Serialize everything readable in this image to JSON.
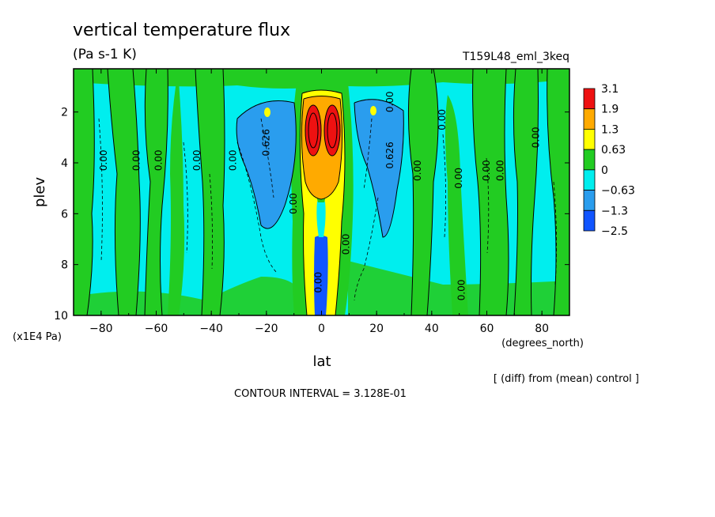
{
  "chart_data": {
    "type": "heatmap",
    "title": "vertical temperature flux",
    "units": "(Pa s-1 K)",
    "experiment": "T159L48_eml_3keq",
    "xlabel": "lat",
    "x_units": "(degrees_north)",
    "ylabel": "plev",
    "y_units": "(x1E4 Pa)",
    "xlim": [
      -90,
      90
    ],
    "ylim": [
      10,
      0.3
    ],
    "x_ticks": [
      -80,
      -60,
      -40,
      -20,
      0,
      20,
      40,
      60,
      80
    ],
    "y_ticks": [
      2,
      4,
      6,
      8,
      10
    ],
    "legend": {
      "placement": "right",
      "labels": [
        "3.1",
        "1.9",
        "1.3",
        "0.63",
        "0",
        "−0.63",
        "−1.3",
        "−2.5"
      ],
      "colors": [
        "#ee1111",
        "#ffaa00",
        "#ffff00",
        "#22cc22",
        "#00eeee",
        "#2a9dee",
        "#1155ff"
      ]
    },
    "contour_labels": [
      {
        "text": "0.00",
        "lat": -78,
        "plev": 3.9
      },
      {
        "text": "0.00",
        "lat": -66,
        "plev": 3.9
      },
      {
        "text": "0.00",
        "lat": -58,
        "plev": 3.9
      },
      {
        "text": "0.00",
        "lat": -44,
        "plev": 3.9
      },
      {
        "text": "0.00",
        "lat": -31,
        "plev": 3.9
      },
      {
        "text": "0.626",
        "lat": -19,
        "plev": 3.2
      },
      {
        "text": "0.00",
        "lat": -9,
        "plev": 5.6
      },
      {
        "text": "0.00",
        "lat": 0,
        "plev": 8.7
      },
      {
        "text": "0.00",
        "lat": 10,
        "plev": 7.2
      },
      {
        "text": "0.626",
        "lat": 26,
        "plev": 3.7
      },
      {
        "text": "0.00",
        "lat": 36,
        "plev": 4.3
      },
      {
        "text": "0.00",
        "lat": 26,
        "plev": 1.6
      },
      {
        "text": "0.00",
        "lat": 45,
        "plev": 2.3
      },
      {
        "text": "0.00",
        "lat": 51,
        "plev": 4.6
      },
      {
        "text": "0.00",
        "lat": 61,
        "plev": 4.3
      },
      {
        "text": "0.00",
        "lat": 66,
        "plev": 4.3
      },
      {
        "text": "0.00",
        "lat": 79,
        "plev": 3.0
      },
      {
        "text": "0.00",
        "lat": 52,
        "plev": 9.0
      }
    ],
    "field_description_bands": [
      {
        "lat_center": 0,
        "plev_top": 1.4,
        "plev_bottom": 3.6,
        "level": "3.1"
      },
      {
        "lat_center": 0,
        "plev_top": 1.2,
        "plev_bottom": 5.4,
        "level": "1.9"
      },
      {
        "lat_center": 0,
        "plev_top": 1.1,
        "plev_bottom": 9.6,
        "level": "1.3"
      },
      {
        "lat_center": -20,
        "plev_top": 1.5,
        "plev_bottom": 5.8,
        "level": "-1.3"
      },
      {
        "lat_center": 22,
        "plev_top": 1.5,
        "plev_bottom": 6.0,
        "level": "-1.3"
      }
    ],
    "grid": false
  },
  "footer": {
    "diff_note": "[ (diff) from (mean) control ]",
    "contour_interval": "CONTOUR INTERVAL = 3.128E-01"
  }
}
